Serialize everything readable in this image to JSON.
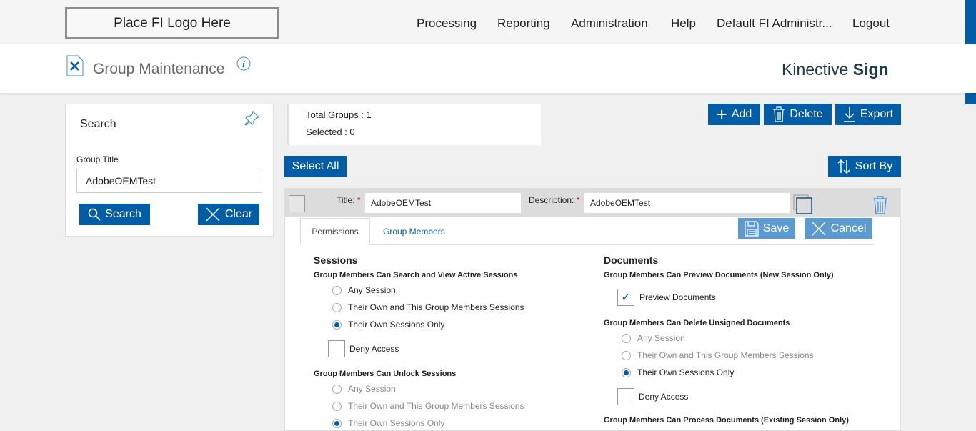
{
  "header": {
    "logo": "Place FI Logo Here",
    "nav": [
      "Processing",
      "Reporting",
      "Administration",
      "Help",
      "Default FI Administr...",
      "Logout"
    ],
    "page_title": "Group Maintenance",
    "brand_light": "Kinective ",
    "brand_bold": "Sign"
  },
  "search": {
    "title": "Search",
    "group_title_label": "Group Title",
    "group_title_value": "AdobeOEMTest",
    "search_btn": "Search",
    "clear_btn": "Clear"
  },
  "summary": {
    "total": "Total Groups : 1",
    "selected": "Selected : 0"
  },
  "toolbar": {
    "add": "Add",
    "delete": "Delete",
    "export": "Export",
    "select_all": "Select All",
    "sort_by": "Sort By"
  },
  "group": {
    "title_label": "Title:",
    "title_value": "AdobeOEMTest",
    "desc_label": "Description:",
    "desc_value": "AdobeOEMTest",
    "tabs": [
      "Permissions",
      "Group Members"
    ],
    "save": "Save",
    "cancel": "Cancel"
  },
  "sessions": {
    "heading": "Sessions",
    "q1": "Group Members Can Search and View Active Sessions",
    "opts": [
      "Any Session",
      "Their Own and This Group Members Sessions",
      "Their Own Sessions Only"
    ],
    "deny": "Deny Access",
    "q2": "Group Members Can Unlock Sessions"
  },
  "documents": {
    "heading": "Documents",
    "q1": "Group Members Can Preview Documents (New Session Only)",
    "preview": "Preview Documents",
    "q2": "Group Members Can Delete Unsigned Documents",
    "deny": "Deny Access",
    "q3": "Group Members Can Process Documents (Existing Session Only)"
  },
  "colors": {
    "accent": "#005da6",
    "accent_light": "#5b9bd0"
  }
}
